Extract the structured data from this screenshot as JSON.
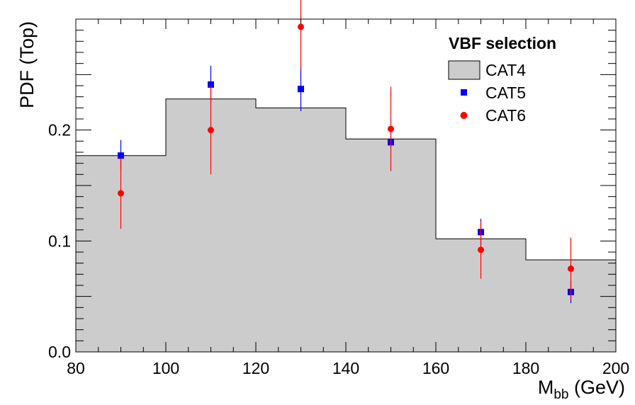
{
  "chart_data": {
    "type": "bar",
    "xlabel_main": "M",
    "xlabel_sub": "bb",
    "xlabel_unit": " (GeV)",
    "ylabel": "PDF (Top)",
    "xlim": [
      80,
      200
    ],
    "ylim": [
      0,
      0.3
    ],
    "x_ticks": [
      "80",
      "100",
      "120",
      "140",
      "160",
      "180",
      "200"
    ],
    "y_ticks": [
      "0.0",
      "0.1",
      "0.2"
    ],
    "legend_title": "VBF selection",
    "legend_position": "top-right",
    "bin_edges": [
      80,
      100,
      120,
      140,
      160,
      180,
      200
    ],
    "series": [
      {
        "name": "CAT4",
        "kind": "histogram",
        "color": "#cccccc",
        "values": [
          0.177,
          0.228,
          0.22,
          0.192,
          0.102,
          0.083
        ]
      },
      {
        "name": "CAT5",
        "kind": "points",
        "marker": "square",
        "color": "#0000ff",
        "x": [
          90,
          110,
          130,
          150,
          170,
          190
        ],
        "y": [
          0.177,
          0.241,
          0.237,
          0.189,
          0.108,
          0.054
        ],
        "err": [
          0.014,
          0.017,
          0.02,
          0.005,
          0.012,
          0.01
        ]
      },
      {
        "name": "CAT6",
        "kind": "points",
        "marker": "circle",
        "color": "#ff0000",
        "x": [
          90,
          110,
          130,
          150,
          170,
          190
        ],
        "y": [
          0.143,
          0.2,
          0.293,
          0.201,
          0.092,
          0.075
        ],
        "err": [
          0.032,
          0.04,
          0.038,
          0.038,
          0.026,
          0.028
        ]
      }
    ]
  }
}
